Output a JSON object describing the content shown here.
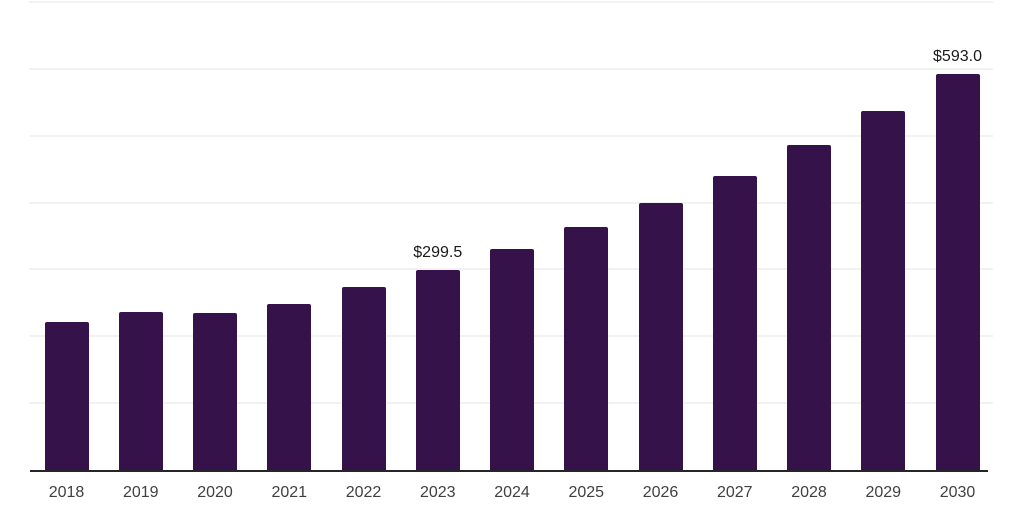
{
  "chart_data": {
    "type": "bar",
    "title": "",
    "xlabel": "",
    "ylabel": "",
    "categories": [
      "2018",
      "2019",
      "2020",
      "2021",
      "2022",
      "2023",
      "2024",
      "2025",
      "2026",
      "2027",
      "2028",
      "2029",
      "2030"
    ],
    "values": [
      221,
      236,
      235,
      249,
      273,
      299.5,
      330,
      363,
      400,
      440,
      486,
      537,
      593
    ],
    "data_labels": [
      "",
      "",
      "",
      "",
      "",
      "$299.5",
      "",
      "",
      "",
      "",
      "",
      "",
      "$593.0"
    ],
    "ylim": [
      0,
      700
    ],
    "gridline_step": 100,
    "grid": true,
    "legend": false,
    "bar_color": "#36124B",
    "axis_line_color": "#262626",
    "gridline_color": "#F2F2F2",
    "tick_label_color": "#404040",
    "data_label_color": "#1A1A1A",
    "background_color": "#FFFFFF"
  }
}
